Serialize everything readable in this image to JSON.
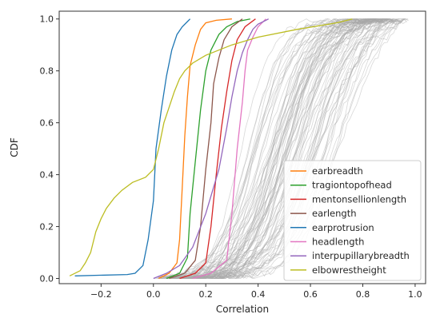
{
  "chart_data": {
    "type": "line",
    "xlabel": "Correlation",
    "ylabel": "CDF",
    "xlim": [
      -0.36,
      1.04
    ],
    "ylim": [
      -0.02,
      1.03
    ],
    "xticks": [
      -0.2,
      0.0,
      0.2,
      0.4,
      0.6,
      0.8,
      1.0
    ],
    "xtick_labels": [
      "−0.2",
      "0.0",
      "0.2",
      "0.4",
      "0.6",
      "0.8",
      "1.0"
    ],
    "yticks": [
      0.0,
      0.2,
      0.4,
      0.6,
      0.8,
      1.0
    ],
    "ytick_labels": [
      "0.0",
      "0.2",
      "0.4",
      "0.6",
      "0.8",
      "1.0"
    ],
    "grid": false,
    "legend_position": "lower-right",
    "background_series": {
      "color": "#a9a9a9",
      "count": 80,
      "description_x_range": [
        0.0,
        0.98
      ]
    },
    "series": [
      {
        "name": "earbreadth",
        "color": "#ff7f0e",
        "points": [
          [
            0.02,
            0.0
          ],
          [
            0.06,
            0.02
          ],
          [
            0.09,
            0.06
          ],
          [
            0.1,
            0.15
          ],
          [
            0.11,
            0.35
          ],
          [
            0.12,
            0.55
          ],
          [
            0.13,
            0.7
          ],
          [
            0.14,
            0.82
          ],
          [
            0.16,
            0.9
          ],
          [
            0.18,
            0.96
          ],
          [
            0.2,
            0.985
          ],
          [
            0.24,
            0.995
          ],
          [
            0.3,
            1.0
          ]
        ]
      },
      {
        "name": "tragiontopofhead",
        "color": "#2ca02c",
        "points": [
          [
            0.05,
            0.0
          ],
          [
            0.1,
            0.02
          ],
          [
            0.13,
            0.08
          ],
          [
            0.14,
            0.25
          ],
          [
            0.16,
            0.45
          ],
          [
            0.18,
            0.65
          ],
          [
            0.2,
            0.8
          ],
          [
            0.22,
            0.88
          ],
          [
            0.25,
            0.94
          ],
          [
            0.28,
            0.97
          ],
          [
            0.32,
            0.99
          ],
          [
            0.37,
            1.0
          ]
        ]
      },
      {
        "name": "mentonsellionlength",
        "color": "#d62728",
        "points": [
          [
            0.1,
            0.0
          ],
          [
            0.16,
            0.02
          ],
          [
            0.2,
            0.06
          ],
          [
            0.22,
            0.2
          ],
          [
            0.24,
            0.4
          ],
          [
            0.26,
            0.58
          ],
          [
            0.28,
            0.72
          ],
          [
            0.3,
            0.84
          ],
          [
            0.32,
            0.92
          ],
          [
            0.35,
            0.97
          ],
          [
            0.39,
            1.0
          ]
        ]
      },
      {
        "name": "earlength",
        "color": "#8c564b",
        "points": [
          [
            0.06,
            0.0
          ],
          [
            0.12,
            0.02
          ],
          [
            0.16,
            0.07
          ],
          [
            0.18,
            0.2
          ],
          [
            0.2,
            0.42
          ],
          [
            0.22,
            0.6
          ],
          [
            0.23,
            0.75
          ],
          [
            0.25,
            0.85
          ],
          [
            0.27,
            0.92
          ],
          [
            0.3,
            0.97
          ],
          [
            0.34,
            1.0
          ]
        ]
      },
      {
        "name": "earprotrusion",
        "color": "#1f77b4",
        "points": [
          [
            -0.3,
            0.01
          ],
          [
            -0.1,
            0.015
          ],
          [
            -0.07,
            0.02
          ],
          [
            -0.04,
            0.05
          ],
          [
            -0.02,
            0.15
          ],
          [
            0.0,
            0.3
          ],
          [
            0.01,
            0.5
          ],
          [
            0.03,
            0.65
          ],
          [
            0.05,
            0.78
          ],
          [
            0.07,
            0.88
          ],
          [
            0.09,
            0.94
          ],
          [
            0.11,
            0.97
          ],
          [
            0.13,
            0.99
          ],
          [
            0.14,
            1.0
          ]
        ]
      },
      {
        "name": "headlength",
        "color": "#e377c2",
        "points": [
          [
            0.15,
            0.0
          ],
          [
            0.22,
            0.02
          ],
          [
            0.28,
            0.07
          ],
          [
            0.3,
            0.25
          ],
          [
            0.32,
            0.5
          ],
          [
            0.34,
            0.68
          ],
          [
            0.35,
            0.8
          ],
          [
            0.36,
            0.88
          ],
          [
            0.38,
            0.93
          ],
          [
            0.4,
            0.97
          ],
          [
            0.43,
            1.0
          ]
        ]
      },
      {
        "name": "interpupillarybreadth",
        "color": "#9467bd",
        "points": [
          [
            0.0,
            0.0
          ],
          [
            0.05,
            0.02
          ],
          [
            0.1,
            0.05
          ],
          [
            0.15,
            0.12
          ],
          [
            0.2,
            0.25
          ],
          [
            0.25,
            0.42
          ],
          [
            0.28,
            0.58
          ],
          [
            0.3,
            0.7
          ],
          [
            0.32,
            0.8
          ],
          [
            0.34,
            0.87
          ],
          [
            0.36,
            0.92
          ],
          [
            0.38,
            0.96
          ],
          [
            0.4,
            0.98
          ],
          [
            0.42,
            0.99
          ],
          [
            0.44,
            1.0
          ]
        ]
      },
      {
        "name": "elbowrestheight",
        "color": "#bcbd22",
        "points": [
          [
            -0.32,
            0.01
          ],
          [
            -0.28,
            0.03
          ],
          [
            -0.26,
            0.06
          ],
          [
            -0.24,
            0.1
          ],
          [
            -0.22,
            0.18
          ],
          [
            -0.2,
            0.23
          ],
          [
            -0.18,
            0.27
          ],
          [
            -0.15,
            0.31
          ],
          [
            -0.12,
            0.34
          ],
          [
            -0.08,
            0.37
          ],
          [
            -0.03,
            0.39
          ],
          [
            0.0,
            0.42
          ],
          [
            0.02,
            0.5
          ],
          [
            0.04,
            0.6
          ],
          [
            0.06,
            0.66
          ],
          [
            0.08,
            0.72
          ],
          [
            0.1,
            0.77
          ],
          [
            0.12,
            0.8
          ],
          [
            0.15,
            0.83
          ],
          [
            0.2,
            0.86
          ],
          [
            0.3,
            0.9
          ],
          [
            0.4,
            0.93
          ],
          [
            0.55,
            0.96
          ],
          [
            0.7,
            0.985
          ],
          [
            0.76,
            1.0
          ]
        ]
      }
    ]
  }
}
